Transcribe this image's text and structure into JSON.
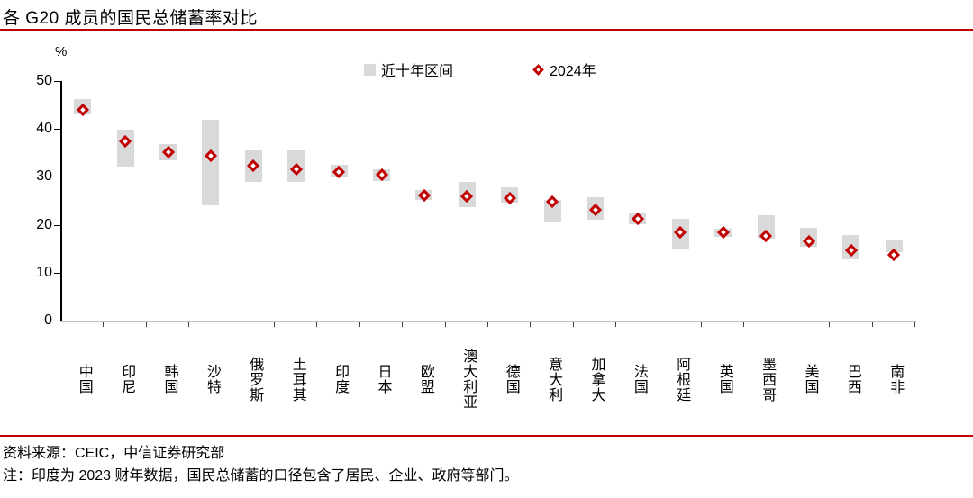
{
  "page": {
    "title": "各 G20 成员的国民总储蓄率对比",
    "footer": {
      "source": "资料来源：CEIC，中信证券研究部",
      "note": "注：印度为 2023 财年数据，国民总储蓄的口径包含了居民、企业、政府等部门。"
    }
  },
  "colors": {
    "accent_red": "#C00000",
    "range_bar_gray": "#D9D9D9",
    "marker_red": "#C00000",
    "x_axis_line_gray": "#BFBFBF",
    "tick_gray": "#404040",
    "text_black": "#000000"
  },
  "chart_data": {
    "type": "bar",
    "subtype": "range-bars-with-diamond-markers",
    "title": "各 G20 成员的国民总储蓄率对比",
    "unit_label": "%",
    "xlabel": "",
    "ylabel": "%",
    "ylim": [
      0,
      50
    ],
    "yticks": [
      0,
      10,
      20,
      30,
      40,
      50
    ],
    "grid": false,
    "legend_position": "top-center",
    "legend": [
      {
        "label": "近十年区间",
        "marker": "gray-range-square"
      },
      {
        "label": "2024年",
        "marker": "red-hollow-diamond"
      }
    ],
    "categories": [
      "中国",
      "印尼",
      "韩国",
      "沙特",
      "俄罗斯",
      "土耳其",
      "印度",
      "日本",
      "欧盟",
      "澳大利亚",
      "德国",
      "意大利",
      "加拿大",
      "法国",
      "阿根廷",
      "英国",
      "墨西哥",
      "美国",
      "巴西",
      "南非"
    ],
    "series": [
      {
        "name": "近十年区间",
        "type": "range",
        "low": [
          43.0,
          32.1,
          33.4,
          24.0,
          29.0,
          29.0,
          29.8,
          29.2,
          25.2,
          23.6,
          24.6,
          20.5,
          21.0,
          20.2,
          14.9,
          17.4,
          17.1,
          15.5,
          12.7,
          14.2
        ],
        "high": [
          46.3,
          39.8,
          36.8,
          42.0,
          35.6,
          35.5,
          32.5,
          31.5,
          27.2,
          29.0,
          27.8,
          25.2,
          25.7,
          22.4,
          21.2,
          19.1,
          22.0,
          19.4,
          17.8,
          16.9
        ]
      },
      {
        "name": "2024年",
        "type": "point",
        "values": [
          44.0,
          37.4,
          35.1,
          34.4,
          32.4,
          31.6,
          31.0,
          30.4,
          26.1,
          25.9,
          25.5,
          24.9,
          23.2,
          21.3,
          18.4,
          18.4,
          17.7,
          16.6,
          14.6,
          13.8
        ]
      }
    ]
  }
}
